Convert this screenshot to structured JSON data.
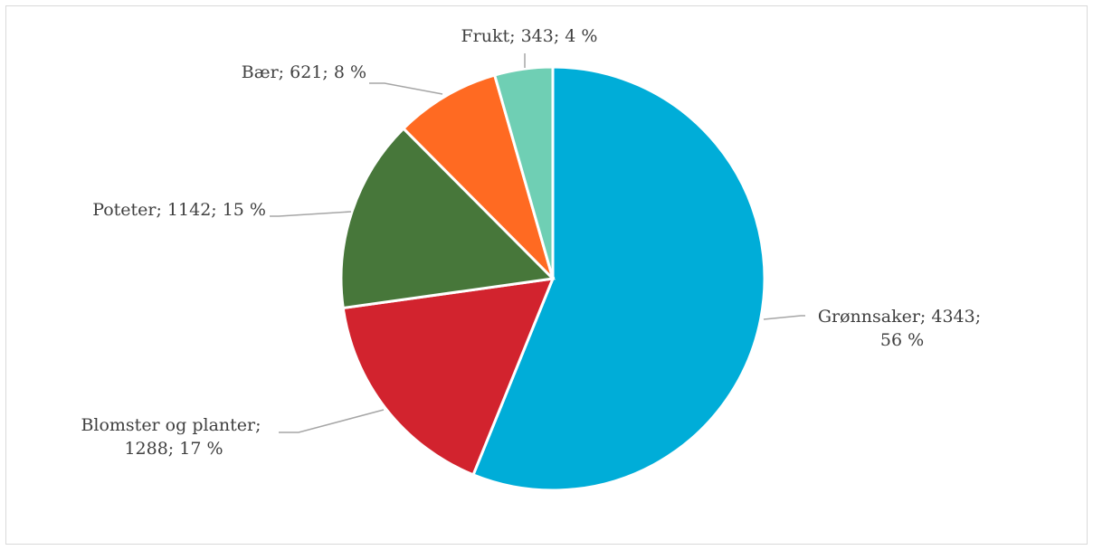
{
  "chart_data": {
    "type": "pie",
    "title": "",
    "start_angle_deg": 0,
    "direction": "clockwise",
    "slices": [
      {
        "key": "gronnsaker",
        "name": "Grønnsaker",
        "value": 4343,
        "percent": "56 %",
        "color": "#00ADD8",
        "label_lines": [
          "Grønnsaker; 4343;",
          "56 %"
        ]
      },
      {
        "key": "blomster",
        "name": "Blomster og planter",
        "value": 1288,
        "percent": "17 %",
        "color": "#D2232E",
        "label_lines": [
          "Blomster og planter;",
          "1288; 17 %"
        ]
      },
      {
        "key": "poteter",
        "name": "Poteter",
        "value": 1142,
        "percent": "15 %",
        "color": "#47773A",
        "label_lines": [
          "Poteter; 1142; 15 %"
        ]
      },
      {
        "key": "baer",
        "name": "Bær",
        "value": 621,
        "percent": "8 %",
        "color": "#FF6A22",
        "label_lines": [
          "Bær; 621; 8 %"
        ]
      },
      {
        "key": "frukt",
        "name": "Frukt",
        "value": 343,
        "percent": "4 %",
        "color": "#6FCFB4",
        "label_lines": [
          "Frukt; 343; 4 %"
        ]
      }
    ],
    "legend": "none",
    "data_labels": "outside with leader lines"
  }
}
